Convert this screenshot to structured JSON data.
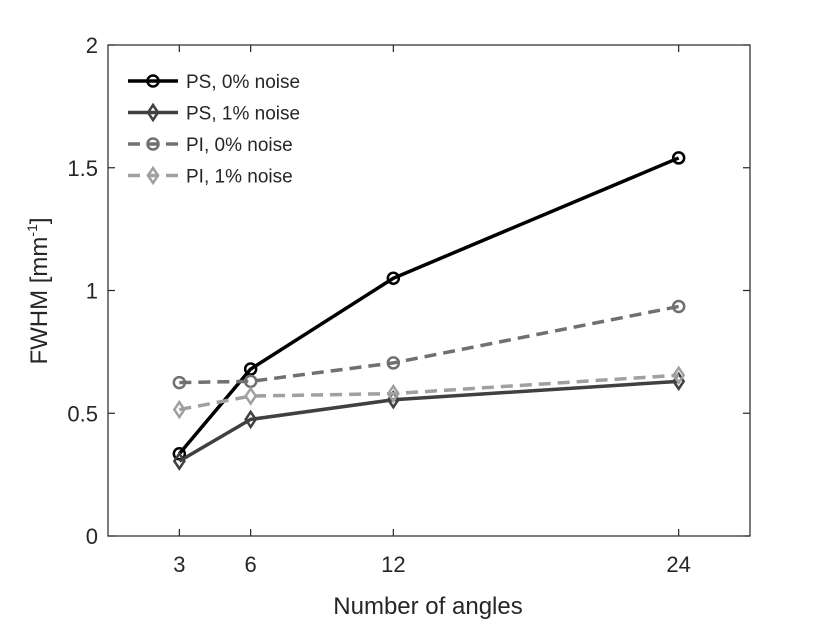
{
  "chart_data": {
    "type": "line",
    "title": "",
    "xlabel": "Number of angles",
    "ylabel_main": "FWHM [mm",
    "ylabel_sup": "-1",
    "ylabel_close": "]",
    "xlim": [
      0,
      27
    ],
    "ylim": [
      0,
      2
    ],
    "xticks": [
      3,
      6,
      12,
      24
    ],
    "xtick_labels": [
      "3",
      "6",
      "12",
      "24"
    ],
    "yticks": [
      0,
      0.5,
      1,
      1.5,
      2
    ],
    "ytick_labels": [
      "0",
      "0.5",
      "1",
      "1.5",
      "2"
    ],
    "grid": false,
    "legend_position": "top-left",
    "x": [
      3,
      6,
      12,
      24
    ],
    "series": [
      {
        "name": "PS, 0% noise",
        "values": [
          0.335,
          0.68,
          1.05,
          1.54
        ],
        "color": "#000000",
        "dash": "solid",
        "marker": "circle"
      },
      {
        "name": "PS, 1% noise",
        "values": [
          0.305,
          0.475,
          0.555,
          0.63
        ],
        "color": "#404040",
        "dash": "solid",
        "marker": "diamond"
      },
      {
        "name": "PI, 0% noise",
        "values": [
          0.625,
          0.63,
          0.705,
          0.935
        ],
        "color": "#707070",
        "dash": "dashed",
        "marker": "circle"
      },
      {
        "name": "PI, 1% noise",
        "values": [
          0.515,
          0.57,
          0.58,
          0.655
        ],
        "color": "#a0a0a0",
        "dash": "dashed",
        "marker": "diamond"
      }
    ]
  }
}
